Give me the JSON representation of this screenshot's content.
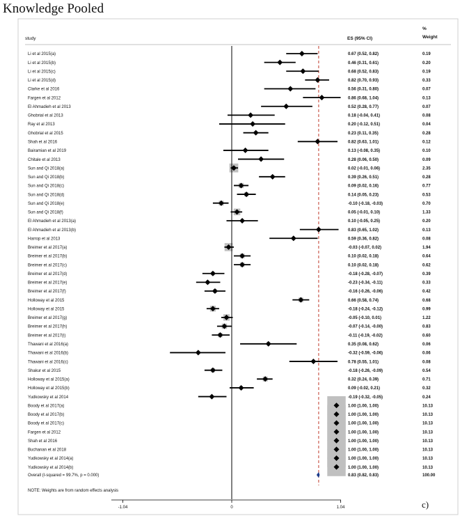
{
  "title": "Knowledge Pooled",
  "panel_label": "c)",
  "chart_data": {
    "type": "forest",
    "headers": {
      "study": "study",
      "es": "ES (95% CI)",
      "weight_line1": "%",
      "weight_line2": "Weight"
    },
    "xticks": [
      "-1.04",
      "0",
      "1.04"
    ],
    "xlim": [
      -1.04,
      1.04
    ],
    "null_line": 0,
    "overall_es": 0.83,
    "note": "NOTE: Weights are from random effects analysis",
    "colors": {
      "ci_line": "#000000",
      "weight_box": "#c0c0c0",
      "overall_line": "#c0392b",
      "diamond": "#1a3a8a"
    },
    "studies": [
      {
        "label": "Li et al 2015(a)",
        "es": 0.67,
        "lo": 0.52,
        "hi": 0.82,
        "ci_text": "0.67 (0.52, 0.82)",
        "weight": "0.19"
      },
      {
        "label": "Li et al 2015(b)",
        "es": 0.46,
        "lo": 0.31,
        "hi": 0.61,
        "ci_text": "0.46 (0.31, 0.61)",
        "weight": "0.20"
      },
      {
        "label": "Li et al 2015(c)",
        "es": 0.68,
        "lo": 0.52,
        "hi": 0.83,
        "ci_text": "0.68 (0.52, 0.83)",
        "weight": "0.19"
      },
      {
        "label": "Li et al 2015(d)",
        "es": 0.82,
        "lo": 0.7,
        "hi": 0.93,
        "ci_text": "0.82 (0.70, 0.93)",
        "weight": "0.33"
      },
      {
        "label": "Clarke et al 2016",
        "es": 0.56,
        "lo": 0.31,
        "hi": 0.8,
        "ci_text": "0.56 (0.31, 0.80)",
        "weight": "0.07"
      },
      {
        "label": "Fargen et al 2012",
        "es": 0.86,
        "lo": 0.68,
        "hi": 1.04,
        "ci_text": "0.86 (0.68, 1.04)",
        "weight": "0.13"
      },
      {
        "label": "El Ahmadieh et al 2013",
        "es": 0.52,
        "lo": 0.28,
        "hi": 0.77,
        "ci_text": "0.52 (0.28, 0.77)",
        "weight": "0.07"
      },
      {
        "label": "Ghobrial et al 2013",
        "es": 0.18,
        "lo": -0.04,
        "hi": 0.41,
        "ci_text": "0.18 (-0.04, 0.41)",
        "weight": "0.08"
      },
      {
        "label": "Ray et al 2013",
        "es": 0.2,
        "lo": -0.12,
        "hi": 0.51,
        "ci_text": "0.20 (-0.12, 0.51)",
        "weight": "0.04"
      },
      {
        "label": "Ghobrial et al 2015",
        "es": 0.23,
        "lo": 0.11,
        "hi": 0.35,
        "ci_text": "0.23 (0.11, 0.35)",
        "weight": "0.28"
      },
      {
        "label": "Shah et al 2016",
        "es": 0.82,
        "lo": 0.63,
        "hi": 1.01,
        "ci_text": "0.82 (0.63, 1.01)",
        "weight": "0.12"
      },
      {
        "label": "Bairamian et al 2019",
        "es": 0.13,
        "lo": -0.08,
        "hi": 0.35,
        "ci_text": "0.13 (-0.08, 0.35)",
        "weight": "0.10"
      },
      {
        "label": "Chitale et al 2013",
        "es": 0.28,
        "lo": 0.06,
        "hi": 0.5,
        "ci_text": "0.28 (0.06, 0.50)",
        "weight": "0.09"
      },
      {
        "label": "Sun and Qi 2018(a)",
        "es": 0.02,
        "lo": -0.01,
        "hi": 0.06,
        "ci_text": "0.02 (-0.01, 0.06)",
        "weight": "2.35"
      },
      {
        "label": "Sun and Qi 2018(b)",
        "es": 0.39,
        "lo": 0.26,
        "hi": 0.51,
        "ci_text": "0.39 (0.26, 0.51)",
        "weight": "0.28"
      },
      {
        "label": "Sun and Qi 2018(c)",
        "es": 0.09,
        "lo": 0.02,
        "hi": 0.16,
        "ci_text": "0.09 (0.02, 0.16)",
        "weight": "0.77"
      },
      {
        "label": "Sun and Qi 2018(d)",
        "es": 0.14,
        "lo": 0.05,
        "hi": 0.23,
        "ci_text": "0.14 (0.05, 0.23)",
        "weight": "0.53"
      },
      {
        "label": "Sun and Qi 2018(e)",
        "es": -0.1,
        "lo": -0.18,
        "hi": -0.03,
        "ci_text": "-0.10 (-0.18, -0.03)",
        "weight": "0.70"
      },
      {
        "label": "Sun and Qi 2018(f)",
        "es": 0.05,
        "lo": -0.01,
        "hi": 0.1,
        "ci_text": "0.05 (-0.01, 0.10)",
        "weight": "1.33"
      },
      {
        "label": "El Ahmadieh et al 2013(a)",
        "es": 0.1,
        "lo": -0.05,
        "hi": 0.25,
        "ci_text": "0.10 (-0.05, 0.25)",
        "weight": "0.20"
      },
      {
        "label": "El Ahmadieh et al 2013(b)",
        "es": 0.83,
        "lo": 0.65,
        "hi": 1.02,
        "ci_text": "0.83 (0.65, 1.02)",
        "weight": "0.13"
      },
      {
        "label": "Harrop et al 2013",
        "es": 0.59,
        "lo": 0.36,
        "hi": 0.82,
        "ci_text": "0.59 (0.36, 0.82)",
        "weight": "0.08"
      },
      {
        "label": "Breimer et al 2017(a)",
        "es": -0.03,
        "lo": -0.07,
        "hi": 0.02,
        "ci_text": "-0.03 (-0.07, 0.02)",
        "weight": "1.94"
      },
      {
        "label": "Breimer et al 2017(b)",
        "es": 0.1,
        "lo": 0.02,
        "hi": 0.18,
        "ci_text": "0.10 (0.02, 0.18)",
        "weight": "0.64"
      },
      {
        "label": "Breimer et al 2017(c)",
        "es": 0.1,
        "lo": 0.02,
        "hi": 0.18,
        "ci_text": "0.10 (0.02, 0.18)",
        "weight": "0.62"
      },
      {
        "label": "Breimer et al 2017(d)",
        "es": -0.18,
        "lo": -0.28,
        "hi": -0.07,
        "ci_text": "-0.18 (-0.28, -0.07)",
        "weight": "0.39"
      },
      {
        "label": "Breimer et al 2017(e)",
        "es": -0.23,
        "lo": -0.34,
        "hi": -0.11,
        "ci_text": "-0.23 (-0.34, -0.11)",
        "weight": "0.33"
      },
      {
        "label": "Breimer et al 2017(f)",
        "es": -0.16,
        "lo": -0.26,
        "hi": -0.06,
        "ci_text": "-0.16 (-0.26, -0.06)",
        "weight": "0.42"
      },
      {
        "label": "Holloway et al 2015",
        "es": 0.66,
        "lo": 0.58,
        "hi": 0.74,
        "ci_text": "0.66 (0.58, 0.74)",
        "weight": "0.68"
      },
      {
        "label": "Holloway et al 2015",
        "es": -0.18,
        "lo": -0.24,
        "hi": -0.12,
        "ci_text": "-0.18 (-0.24, -0.12)",
        "weight": "0.99"
      },
      {
        "label": "Breimer et al 2017(g)",
        "es": -0.05,
        "lo": -0.1,
        "hi": 0.01,
        "ci_text": "-0.05 (-0.10, 0.01)",
        "weight": "1.22"
      },
      {
        "label": "Breimer et al 2017(h)",
        "es": -0.07,
        "lo": -0.14,
        "hi": -0.0,
        "ci_text": "-0.07 (-0.14, -0.00)",
        "weight": "0.83"
      },
      {
        "label": "Breimer et al 2017(i)",
        "es": -0.11,
        "lo": -0.19,
        "hi": -0.02,
        "ci_text": "-0.11 (-0.19, -0.02)",
        "weight": "0.60"
      },
      {
        "label": "Thawani et al 2016(a)",
        "es": 0.35,
        "lo": 0.08,
        "hi": 0.62,
        "ci_text": "0.35 (0.08, 0.62)",
        "weight": "0.06"
      },
      {
        "label": "Thawani et al 2016(b)",
        "es": -0.32,
        "lo": -0.59,
        "hi": -0.06,
        "ci_text": "-0.32 (-0.59, -0.06)",
        "weight": "0.06"
      },
      {
        "label": "Thawani et al 2016(c)",
        "es": 0.78,
        "lo": 0.55,
        "hi": 1.01,
        "ci_text": "0.78 (0.55, 1.01)",
        "weight": "0.08"
      },
      {
        "label": "Shakur et al 2015",
        "es": -0.18,
        "lo": -0.26,
        "hi": -0.09,
        "ci_text": "-0.18 (-0.26, -0.09)",
        "weight": "0.54"
      },
      {
        "label": "Holloway et al 2015(a)",
        "es": 0.32,
        "lo": 0.24,
        "hi": 0.39,
        "ci_text": "0.32 (0.24, 0.39)",
        "weight": "0.71"
      },
      {
        "label": "Holloway et al 2015(b)",
        "es": 0.09,
        "lo": -0.02,
        "hi": 0.21,
        "ci_text": "0.09 (-0.02, 0.21)",
        "weight": "0.32"
      },
      {
        "label": "Yudkowsky et al 2014",
        "es": -0.19,
        "lo": -0.32,
        "hi": -0.05,
        "ci_text": "-0.19 (-0.32, -0.05)",
        "weight": "0.24"
      },
      {
        "label": "Boody et al 2017(a)",
        "es": 1.0,
        "lo": 1.0,
        "hi": 1.0,
        "ci_text": "1.00 (1.00, 1.00)",
        "weight": "10.13"
      },
      {
        "label": "Boody et al 2017(b)",
        "es": 1.0,
        "lo": 1.0,
        "hi": 1.0,
        "ci_text": "1.00 (1.00, 1.00)",
        "weight": "10.13"
      },
      {
        "label": "Boody et al 2017(c)",
        "es": 1.0,
        "lo": 1.0,
        "hi": 1.0,
        "ci_text": "1.00 (1.00, 1.00)",
        "weight": "10.13"
      },
      {
        "label": "Fargen et al 2012",
        "es": 1.0,
        "lo": 1.0,
        "hi": 1.0,
        "ci_text": "1.00 (1.00, 1.00)",
        "weight": "10.13"
      },
      {
        "label": "Shah et al 2016",
        "es": 1.0,
        "lo": 1.0,
        "hi": 1.0,
        "ci_text": "1.00 (1.00, 1.00)",
        "weight": "10.13"
      },
      {
        "label": "Buchanan et al 2018",
        "es": 1.0,
        "lo": 1.0,
        "hi": 1.0,
        "ci_text": "1.00 (1.00, 1.00)",
        "weight": "10.13"
      },
      {
        "label": "Yudkowsky et al 2014(a)",
        "es": 1.0,
        "lo": 1.0,
        "hi": 1.0,
        "ci_text": "1.00 (1.00, 1.00)",
        "weight": "10.13"
      },
      {
        "label": "Yudkowsky et al 2014(b)",
        "es": 1.0,
        "lo": 1.0,
        "hi": 1.0,
        "ci_text": "1.00 (1.00, 1.00)",
        "weight": "10.13"
      }
    ],
    "overall": {
      "label": "Overall  (I-squared = 99.7%, p = 0.000)",
      "es": 0.83,
      "lo": 0.82,
      "hi": 0.83,
      "ci_text": "0.83 (0.82, 0.83)",
      "weight": "100.00"
    }
  }
}
